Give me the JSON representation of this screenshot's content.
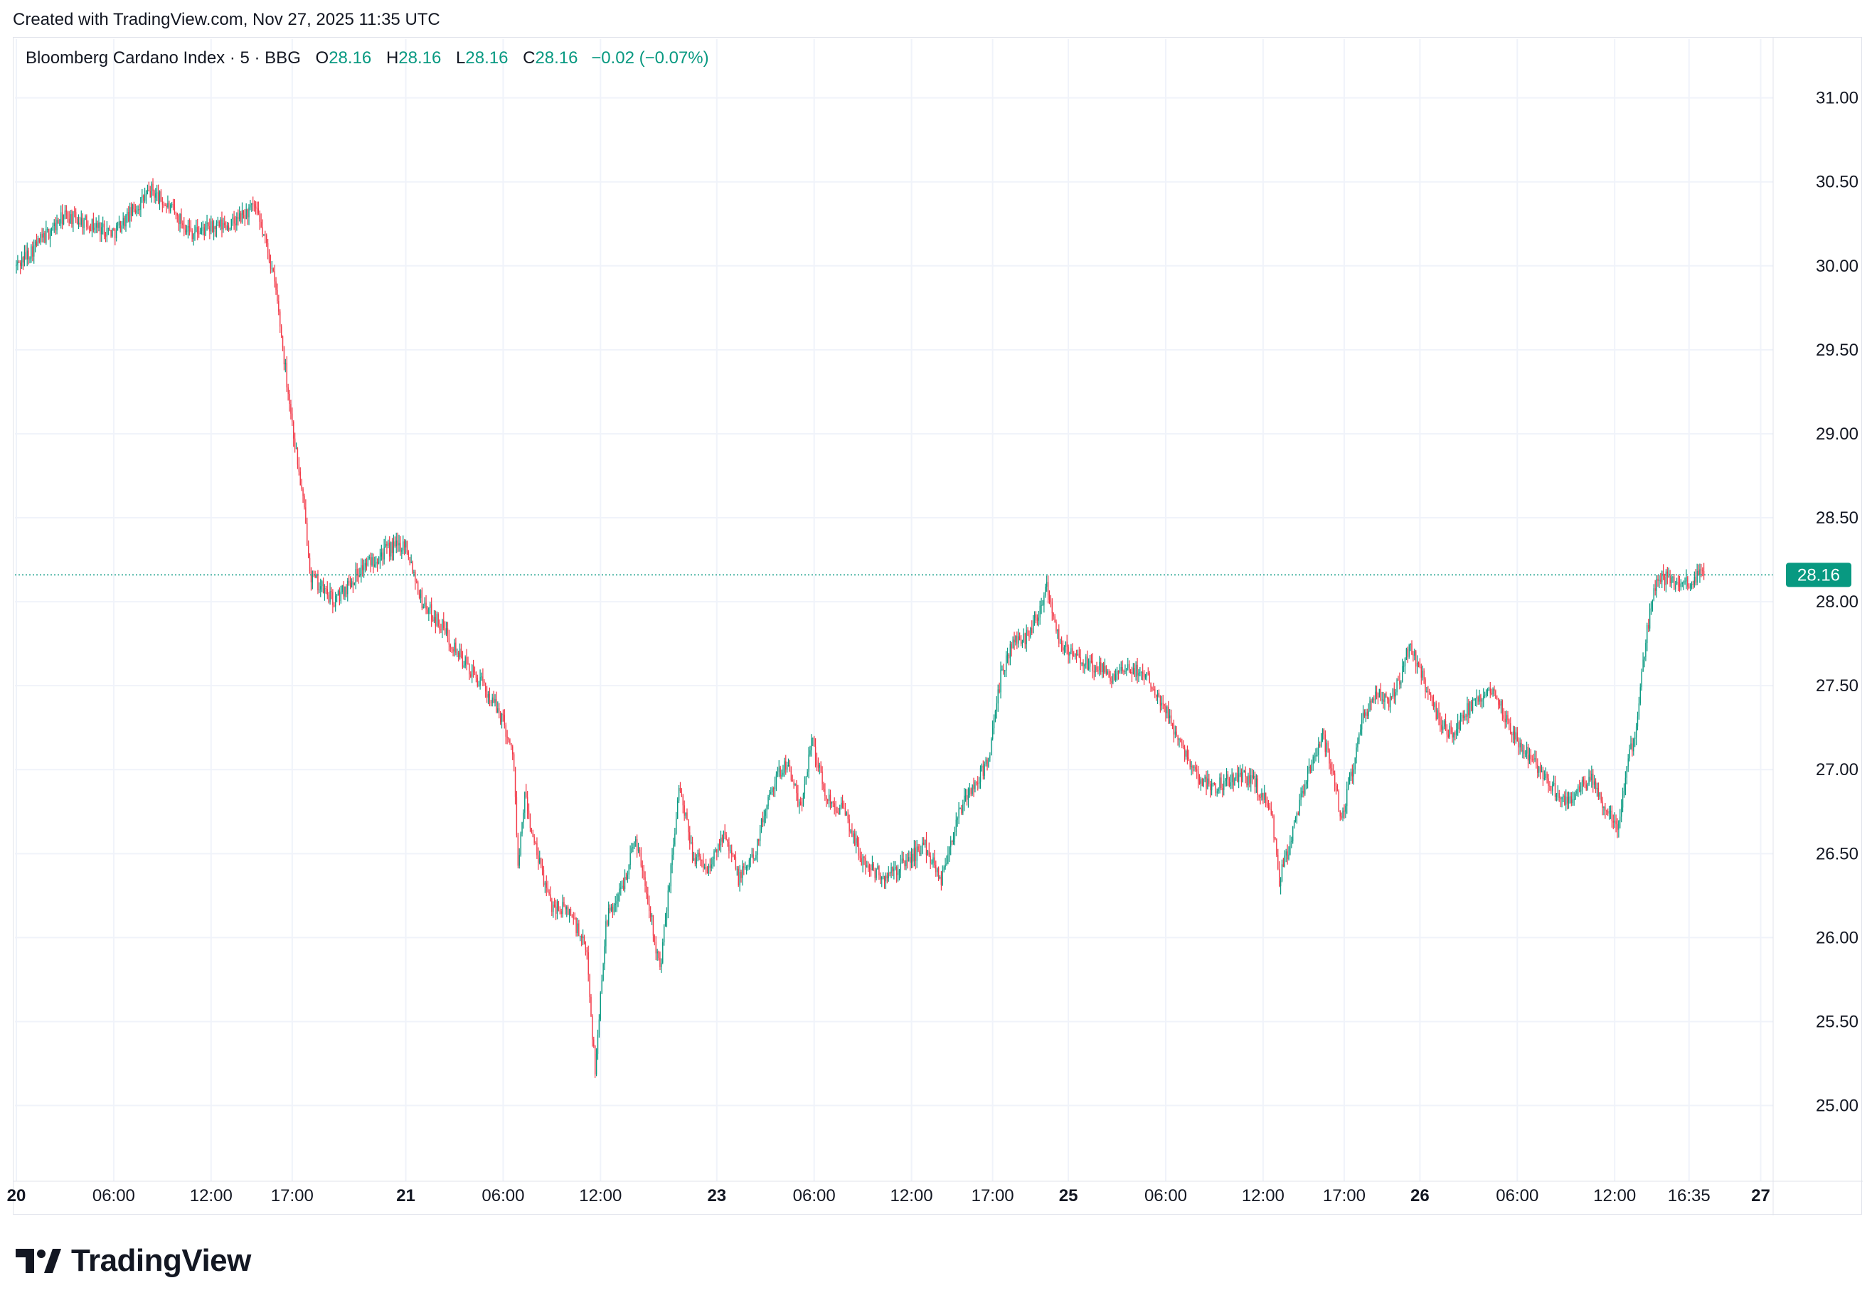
{
  "header": {
    "created_text": "Created with TradingView.com, Nov 27, 2025 11:35 UTC"
  },
  "legend": {
    "symbol": "Bloomberg Cardano Index · 5 · BBG",
    "o_label": "O",
    "o_value": "28.16",
    "h_label": "H",
    "h_value": "28.16",
    "l_label": "L",
    "l_value": "28.16",
    "c_label": "C",
    "c_value": "28.16",
    "change": "−0.02 (−0.07%)"
  },
  "footer": {
    "brand": "TradingView"
  },
  "colors": {
    "up": "#089981",
    "down": "#f23645",
    "grid": "#f0f3fa",
    "axis_text": "#131722",
    "price_tag": "#089981"
  },
  "chart_data": {
    "type": "candlestick",
    "title": "Bloomberg Cardano Index · 5 · BBG",
    "interval": "5",
    "last_price": 28.16,
    "last_price_label": "28.16",
    "ylim": [
      24.6,
      31.35
    ],
    "y_ticks": [
      "25.00",
      "25.50",
      "26.00",
      "26.50",
      "27.00",
      "27.50",
      "28.00",
      "28.50",
      "29.00",
      "29.50",
      "30.00",
      "30.50",
      "31.00"
    ],
    "x_ticks": [
      {
        "label": "20",
        "bold": true,
        "bar": 0
      },
      {
        "label": "06:00",
        "bold": false,
        "bar": 72
      },
      {
        "label": "12:00",
        "bold": false,
        "bar": 144
      },
      {
        "label": "17:00",
        "bold": false,
        "bar": 204
      },
      {
        "label": "21",
        "bold": true,
        "bar": 288
      },
      {
        "label": "06:00",
        "bold": false,
        "bar": 360
      },
      {
        "label": "12:00",
        "bold": false,
        "bar": 432
      },
      {
        "label": "23",
        "bold": true,
        "bar": 518
      },
      {
        "label": "06:00",
        "bold": false,
        "bar": 590
      },
      {
        "label": "12:00",
        "bold": false,
        "bar": 662
      },
      {
        "label": "17:00",
        "bold": false,
        "bar": 722
      },
      {
        "label": "25",
        "bold": true,
        "bar": 778
      },
      {
        "label": "06:00",
        "bold": false,
        "bar": 850
      },
      {
        "label": "12:00",
        "bold": false,
        "bar": 922
      },
      {
        "label": "17:00",
        "bold": false,
        "bar": 982
      },
      {
        "label": "26",
        "bold": true,
        "bar": 1038
      },
      {
        "label": "06:00",
        "bold": false,
        "bar": 1110
      },
      {
        "label": "12:00",
        "bold": false,
        "bar": 1182
      },
      {
        "label": "16:35",
        "bold": false,
        "bar": 1237
      },
      {
        "label": "27",
        "bold": true,
        "bar": 1290
      }
    ],
    "total_bars": 1295,
    "close_path_anchors": [
      [
        0,
        30.0
      ],
      [
        12,
        30.1
      ],
      [
        36,
        30.3
      ],
      [
        72,
        30.2
      ],
      [
        100,
        30.45
      ],
      [
        130,
        30.2
      ],
      [
        160,
        30.25
      ],
      [
        176,
        30.35
      ],
      [
        186,
        30.1
      ],
      [
        192,
        29.85
      ],
      [
        198,
        29.45
      ],
      [
        205,
        29.0
      ],
      [
        212,
        28.6
      ],
      [
        218,
        28.15
      ],
      [
        235,
        28.0
      ],
      [
        255,
        28.2
      ],
      [
        272,
        28.3
      ],
      [
        288,
        28.35
      ],
      [
        300,
        28.0
      ],
      [
        315,
        27.85
      ],
      [
        330,
        27.65
      ],
      [
        345,
        27.5
      ],
      [
        360,
        27.3
      ],
      [
        368,
        27.05
      ],
      [
        371,
        26.4
      ],
      [
        376,
        26.85
      ],
      [
        383,
        26.55
      ],
      [
        395,
        26.2
      ],
      [
        410,
        26.15
      ],
      [
        422,
        25.9
      ],
      [
        428,
        25.2
      ],
      [
        436,
        26.1
      ],
      [
        448,
        26.3
      ],
      [
        458,
        26.6
      ],
      [
        468,
        26.2
      ],
      [
        476,
        25.8
      ],
      [
        484,
        26.4
      ],
      [
        490,
        26.9
      ],
      [
        500,
        26.5
      ],
      [
        512,
        26.4
      ],
      [
        524,
        26.65
      ],
      [
        534,
        26.35
      ],
      [
        546,
        26.5
      ],
      [
        558,
        26.9
      ],
      [
        570,
        27.05
      ],
      [
        580,
        26.75
      ],
      [
        588,
        27.2
      ],
      [
        598,
        26.85
      ],
      [
        612,
        26.75
      ],
      [
        626,
        26.45
      ],
      [
        642,
        26.35
      ],
      [
        658,
        26.45
      ],
      [
        672,
        26.55
      ],
      [
        684,
        26.35
      ],
      [
        692,
        26.6
      ],
      [
        700,
        26.8
      ],
      [
        712,
        26.95
      ],
      [
        720,
        27.1
      ],
      [
        728,
        27.55
      ],
      [
        736,
        27.75
      ],
      [
        748,
        27.8
      ],
      [
        756,
        27.95
      ],
      [
        762,
        28.1
      ],
      [
        772,
        27.75
      ],
      [
        786,
        27.65
      ],
      [
        800,
        27.6
      ],
      [
        812,
        27.55
      ],
      [
        826,
        27.6
      ],
      [
        838,
        27.55
      ],
      [
        850,
        27.35
      ],
      [
        862,
        27.15
      ],
      [
        874,
        26.95
      ],
      [
        886,
        26.9
      ],
      [
        900,
        26.95
      ],
      [
        914,
        26.95
      ],
      [
        928,
        26.75
      ],
      [
        934,
        26.35
      ],
      [
        942,
        26.55
      ],
      [
        950,
        26.85
      ],
      [
        958,
        27.05
      ],
      [
        966,
        27.2
      ],
      [
        972,
        27.05
      ],
      [
        980,
        26.7
      ],
      [
        988,
        27.0
      ],
      [
        996,
        27.3
      ],
      [
        1006,
        27.45
      ],
      [
        1014,
        27.4
      ],
      [
        1024,
        27.55
      ],
      [
        1030,
        27.75
      ],
      [
        1040,
        27.55
      ],
      [
        1052,
        27.3
      ],
      [
        1062,
        27.2
      ],
      [
        1072,
        27.35
      ],
      [
        1082,
        27.4
      ],
      [
        1092,
        27.5
      ],
      [
        1102,
        27.3
      ],
      [
        1112,
        27.15
      ],
      [
        1122,
        27.05
      ],
      [
        1132,
        26.95
      ],
      [
        1142,
        26.8
      ],
      [
        1152,
        26.85
      ],
      [
        1164,
        26.95
      ],
      [
        1176,
        26.75
      ],
      [
        1184,
        26.65
      ],
      [
        1192,
        27.05
      ],
      [
        1198,
        27.25
      ],
      [
        1204,
        27.7
      ],
      [
        1210,
        28.05
      ],
      [
        1216,
        28.15
      ],
      [
        1232,
        28.1
      ],
      [
        1248,
        28.16
      ]
    ]
  }
}
